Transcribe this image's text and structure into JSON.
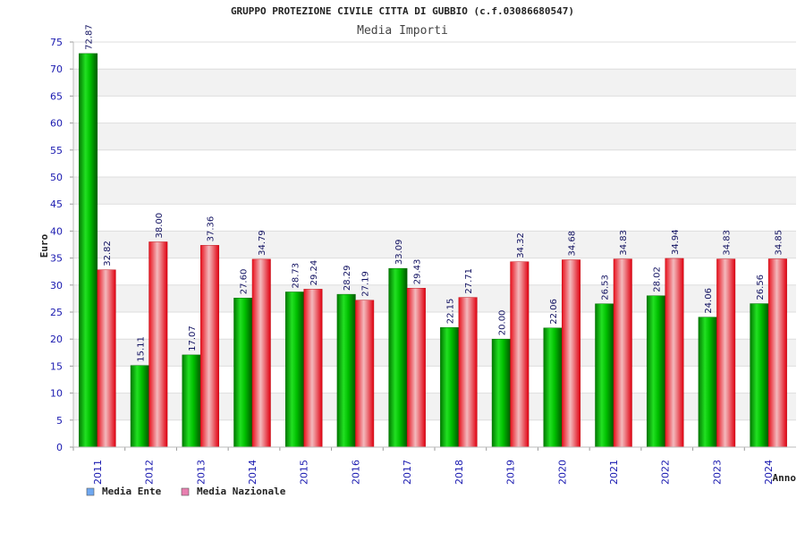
{
  "chart_data": {
    "type": "bar",
    "title": "GRUPPO PROTEZIONE CIVILE CITTA DI GUBBIO (c.f.03086680547)",
    "subtitle": "Media Importi",
    "xlabel": "Anno",
    "ylabel": "Euro",
    "ylim": [
      0,
      75
    ],
    "yticks": [
      0,
      5,
      10,
      15,
      20,
      25,
      30,
      35,
      40,
      45,
      50,
      55,
      60,
      65,
      70,
      75
    ],
    "grid": true,
    "legend_position": "bottom-left",
    "categories": [
      "2011",
      "2012",
      "2013",
      "2014",
      "2015",
      "2016",
      "2017",
      "2018",
      "2019",
      "2020",
      "2021",
      "2022",
      "2023",
      "2024"
    ],
    "series": [
      {
        "name": "Media Ente",
        "color": "#00b000",
        "legend_color": "#6fa8f0",
        "values": [
          72.87,
          15.11,
          17.07,
          27.6,
          28.73,
          28.29,
          33.09,
          22.15,
          20.0,
          22.06,
          26.53,
          28.02,
          24.06,
          26.56
        ],
        "labels": [
          "72.87",
          "15.11",
          "17.07",
          "27.60",
          "28.73",
          "28.29",
          "33.09",
          "22.15",
          "20.00",
          "22.06",
          "26.53",
          "28.02",
          "24.06",
          "26.56"
        ]
      },
      {
        "name": "Media Nazionale",
        "color": "#e81c24",
        "legend_color": "#e87fb0",
        "values": [
          32.82,
          38.0,
          37.36,
          34.79,
          29.24,
          27.19,
          29.43,
          27.71,
          34.32,
          34.68,
          34.83,
          34.94,
          34.83,
          34.85
        ],
        "labels": [
          "32.82",
          "38.00",
          "37.36",
          "34.79",
          "29.24",
          "27.19",
          "29.43",
          "27.71",
          "34.32",
          "34.68",
          "34.83",
          "34.94",
          "34.83",
          "34.85"
        ]
      }
    ]
  }
}
